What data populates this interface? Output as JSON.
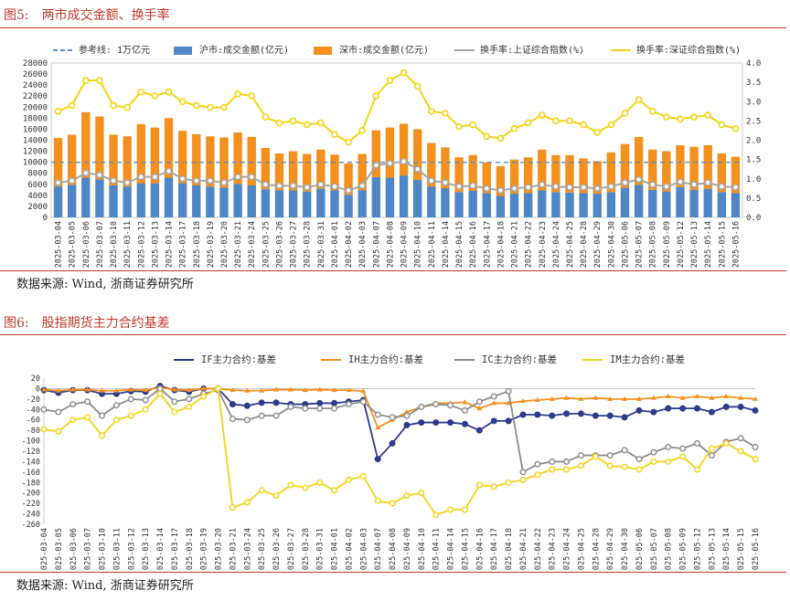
{
  "figures": [
    {
      "title_num": "图5:",
      "title": "两市成交金额、换手率",
      "source": "数据来源: Wind, 浙商证券研究所"
    },
    {
      "title_num": "图6:",
      "title": "股指期货主力合约基差",
      "source": "数据来源: Wind, 浙商证券研究所"
    }
  ],
  "colors": {
    "title_red": "#c0392b",
    "sh_bar": "#4e86c6",
    "sz_bar": "#f4901e",
    "turnover_sh": "#a6a6a6",
    "turnover_sz": "#f5d311",
    "ref_line": "#5b8ec7",
    "if": "#2e3a8c",
    "ih": "#f4901e",
    "ic": "#8c8c8c",
    "im": "#f5d311"
  },
  "chart_data": [
    {
      "type": "bar",
      "stacked": true,
      "categories": [
        "2025-03-04",
        "2025-03-05",
        "2025-03-06",
        "2025-03-07",
        "2025-03-10",
        "2025-03-11",
        "2025-03-12",
        "2025-03-13",
        "2025-03-14",
        "2025-03-17",
        "2025-03-18",
        "2025-03-19",
        "2025-03-20",
        "2025-03-21",
        "2025-03-24",
        "2025-03-25",
        "2025-03-26",
        "2025-03-27",
        "2025-03-28",
        "2025-03-31",
        "2025-04-01",
        "2025-04-02",
        "2025-04-03",
        "2025-04-07",
        "2025-04-08",
        "2025-04-09",
        "2025-04-10",
        "2025-04-11",
        "2025-04-14",
        "2025-04-15",
        "2025-04-16",
        "2025-04-17",
        "2025-04-18",
        "2025-04-21",
        "2025-04-22",
        "2025-04-23",
        "2025-04-24",
        "2025-04-25",
        "2025-04-28",
        "2025-04-29",
        "2025-04-30",
        "2025-05-06",
        "2025-05-07",
        "2025-05-08",
        "2025-05-09",
        "2025-05-12",
        "2025-05-13",
        "2025-05-14",
        "2025-05-15",
        "2025-05-16"
      ],
      "legend": [
        "参考线: 1万亿元",
        "沪市:成交金额(亿元)",
        "深市:成交金额(亿元)",
        "换手率:上证综合指数(%)",
        "换手率:深证综合指数(%)"
      ],
      "reference_line": 10000,
      "ylim_left": [
        0,
        28000
      ],
      "yticks_left": [
        0,
        2000,
        4000,
        6000,
        8000,
        10000,
        12000,
        14000,
        16000,
        18000,
        20000,
        22000,
        24000,
        26000,
        28000
      ],
      "ylim_right": [
        0,
        4.0
      ],
      "yticks_right": [
        "0.0",
        "0.5",
        "1.0",
        "1.5",
        "2.0",
        "2.5",
        "3.0",
        "3.5",
        "4.0"
      ],
      "series": [
        {
          "name": "沪市:成交金额(亿元)",
          "axis": "left",
          "values": [
            5600,
            5900,
            7200,
            6900,
            5800,
            5600,
            6200,
            6200,
            7200,
            6200,
            5800,
            5600,
            5400,
            6100,
            5800,
            5100,
            4900,
            4900,
            4700,
            5200,
            4900,
            4100,
            4900,
            7300,
            7200,
            7600,
            6800,
            5600,
            5300,
            4600,
            4800,
            4400,
            3900,
            4300,
            4400,
            4900,
            4600,
            4500,
            4400,
            4300,
            4600,
            5400,
            5900,
            5000,
            4700,
            5500,
            5000,
            5200,
            4600,
            4400
          ]
        },
        {
          "name": "深市:成交金额(亿元)",
          "axis": "left",
          "values": [
            8800,
            9100,
            11900,
            11400,
            9200,
            9100,
            10700,
            10100,
            10800,
            9500,
            9300,
            9100,
            9100,
            9300,
            8800,
            7500,
            6700,
            7100,
            6800,
            7100,
            6500,
            5700,
            6600,
            8500,
            9100,
            9400,
            9200,
            7900,
            7400,
            6300,
            6500,
            5600,
            5400,
            6200,
            6500,
            7400,
            6700,
            6800,
            6300,
            5900,
            7200,
            7900,
            8700,
            7300,
            7300,
            7600,
            7800,
            7900,
            7000,
            6600
          ]
        },
        {
          "name": "换手率:上证综合指数(%)",
          "axis": "right",
          "values": [
            0.9,
            0.95,
            1.15,
            1.1,
            0.95,
            0.9,
            1.05,
            1.05,
            1.2,
            1.0,
            0.95,
            0.95,
            0.9,
            1.05,
            1.05,
            0.85,
            0.82,
            0.82,
            0.78,
            0.85,
            0.8,
            0.7,
            0.82,
            1.35,
            1.4,
            1.45,
            1.25,
            0.95,
            0.9,
            0.8,
            0.82,
            0.75,
            0.7,
            0.75,
            0.78,
            0.85,
            0.8,
            0.78,
            0.78,
            0.75,
            0.8,
            0.9,
            0.98,
            0.85,
            0.8,
            0.92,
            0.85,
            0.9,
            0.8,
            0.78
          ]
        },
        {
          "name": "换手率:深证综合指数(%)",
          "axis": "right",
          "values": [
            2.75,
            2.9,
            3.55,
            3.55,
            2.9,
            2.85,
            3.25,
            3.15,
            3.25,
            3.0,
            2.9,
            2.85,
            2.85,
            3.2,
            3.15,
            2.6,
            2.45,
            2.5,
            2.4,
            2.45,
            2.15,
            1.95,
            2.25,
            3.15,
            3.55,
            3.75,
            3.4,
            2.75,
            2.7,
            2.35,
            2.4,
            2.1,
            2.05,
            2.3,
            2.45,
            2.65,
            2.5,
            2.5,
            2.4,
            2.2,
            2.4,
            2.7,
            3.05,
            2.75,
            2.6,
            2.55,
            2.6,
            2.65,
            2.4,
            2.3
          ]
        }
      ]
    },
    {
      "type": "line",
      "categories": [
        "2025-03-04",
        "2025-03-05",
        "2025-03-06",
        "2025-03-07",
        "2025-03-10",
        "2025-03-11",
        "2025-03-12",
        "2025-03-13",
        "2025-03-14",
        "2025-03-17",
        "2025-03-18",
        "2025-03-19",
        "2025-03-20",
        "2025-03-21",
        "2025-03-24",
        "2025-03-25",
        "2025-03-26",
        "2025-03-27",
        "2025-03-28",
        "2025-03-31",
        "2025-04-01",
        "2025-04-02",
        "2025-04-03",
        "2025-04-07",
        "2025-04-08",
        "2025-04-09",
        "2025-04-10",
        "2025-04-11",
        "2025-04-14",
        "2025-04-15",
        "2025-04-16",
        "2025-04-17",
        "2025-04-18",
        "2025-04-21",
        "2025-04-22",
        "2025-04-23",
        "2025-04-24",
        "2025-04-25",
        "2025-04-28",
        "2025-04-29",
        "2025-04-30",
        "2025-05-06",
        "2025-05-07",
        "2025-05-08",
        "2025-05-09",
        "2025-05-12",
        "2025-05-13",
        "2025-05-14",
        "2025-05-15",
        "2025-05-16"
      ],
      "ylim": [
        -260,
        20
      ],
      "yticks": [
        20,
        0,
        -20,
        -40,
        -60,
        -80,
        -100,
        -120,
        -140,
        -160,
        -180,
        -200,
        -220,
        -240,
        -260
      ],
      "series": [
        {
          "name": "IF主力合约:基差",
          "values": [
            -3,
            -8,
            -3,
            -3,
            -10,
            -10,
            -5,
            -6,
            5,
            -3,
            -6,
            0,
            0,
            -30,
            -33,
            -27,
            -27,
            -30,
            -30,
            -28,
            -28,
            -25,
            -22,
            -135,
            -105,
            -70,
            -65,
            -65,
            -65,
            -68,
            -80,
            -62,
            -62,
            -50,
            -50,
            -52,
            -48,
            -48,
            -52,
            -52,
            -55,
            -42,
            -45,
            -38,
            -38,
            -38,
            -45,
            -35,
            -35,
            -42
          ]
        },
        {
          "name": "IH主力合约:基差",
          "values": [
            -2,
            -4,
            -2,
            -2,
            -4,
            -4,
            -2,
            -3,
            2,
            -2,
            -3,
            0,
            0,
            -3,
            -4,
            -4,
            -2,
            -2,
            -3,
            -2,
            -3,
            -3,
            -5,
            -75,
            -60,
            -45,
            -35,
            -28,
            -28,
            -26,
            -38,
            -28,
            -28,
            -24,
            -22,
            -20,
            -18,
            -20,
            -18,
            -20,
            -20,
            -20,
            -18,
            -15,
            -18,
            -15,
            -18,
            -15,
            -18,
            -20
          ]
        },
        {
          "name": "IC主力合约:基差",
          "values": [
            -40,
            -45,
            -30,
            -25,
            -52,
            -32,
            -20,
            -22,
            0,
            -25,
            -20,
            -10,
            -3,
            -58,
            -60,
            -52,
            -52,
            -35,
            -38,
            -38,
            -38,
            -30,
            -25,
            -50,
            -55,
            -52,
            -35,
            -30,
            -32,
            -42,
            -25,
            -15,
            -5,
            -160,
            -145,
            -140,
            -140,
            -128,
            -128,
            -128,
            -118,
            -135,
            -122,
            -112,
            -115,
            -105,
            -128,
            -102,
            -95,
            -112
          ]
        },
        {
          "name": "IM主力合约:基差",
          "values": [
            -78,
            -82,
            -60,
            -55,
            -90,
            -60,
            -52,
            -40,
            -10,
            -45,
            -35,
            -15,
            0,
            -228,
            -218,
            -195,
            -205,
            -185,
            -190,
            -180,
            -195,
            -175,
            -168,
            -215,
            -220,
            -205,
            -200,
            -242,
            -232,
            -232,
            -185,
            -188,
            -180,
            -175,
            -165,
            -155,
            -155,
            -148,
            -130,
            -148,
            -150,
            -155,
            -140,
            -140,
            -130,
            -155,
            -115,
            -105,
            -120,
            -135
          ]
        }
      ]
    }
  ]
}
